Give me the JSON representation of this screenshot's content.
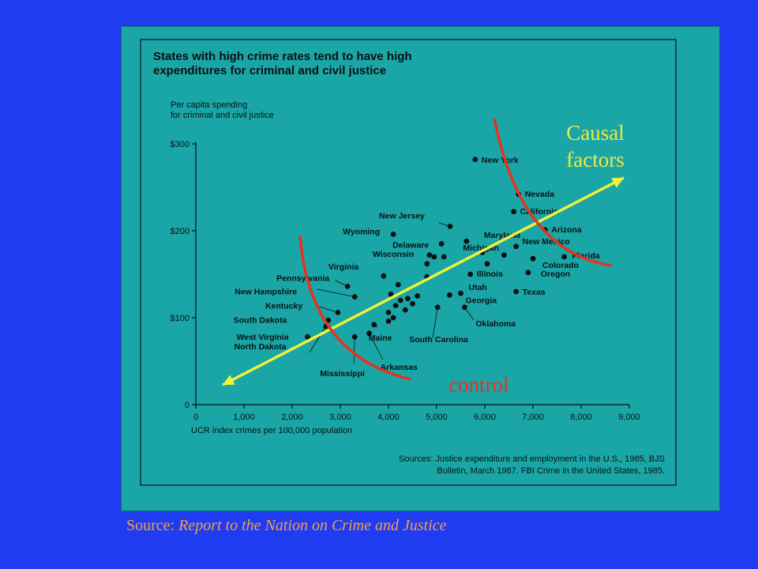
{
  "source": {
    "prefix": "Source: ",
    "title": "Report to the Nation on Crime and Justice"
  },
  "colors": {
    "background": "#1f3cf0",
    "panel": "#1aa6a6",
    "ink": "#0b1014",
    "arrow": "#f2f23a",
    "curve": "#e8321e",
    "annotation_causal": "#f2ea3a",
    "annotation_control": "#e8321e",
    "source": "#f5a046"
  },
  "chart_data": {
    "type": "scatter",
    "title_lines": [
      "States with high crime rates tend to have high",
      "expenditures for criminal and civil justice"
    ],
    "ylabel_lines": [
      "Per capita spending",
      "for criminal and civil justice"
    ],
    "xlabel": "UCR index crimes per 100,000 population",
    "xlim": [
      0,
      9000
    ],
    "ylim": [
      0,
      300
    ],
    "x_ticks": [
      0,
      1000,
      2000,
      3000,
      4000,
      5000,
      6000,
      7000,
      8000,
      9000
    ],
    "x_tick_labels": [
      "0",
      "1,000",
      "2,000",
      "3,000",
      "4,000",
      "5,000",
      "6,000",
      "7,000",
      "8,000",
      "9,000"
    ],
    "y_ticks": [
      0,
      100,
      200,
      300
    ],
    "y_tick_labels": [
      "0",
      "$100",
      "$200",
      "$300"
    ],
    "sources_lines": [
      "Sources: Justice expenditure and employment in the U.S., 1985, BJS",
      "Bulletin, March 1987. FBI Crime in the United States, 1985."
    ],
    "points": [
      {
        "label": "New York",
        "x": 5800,
        "y": 282
      },
      {
        "label": "Nevada",
        "x": 6700,
        "y": 242
      },
      {
        "label": "California",
        "x": 6600,
        "y": 222
      },
      {
        "label": "Arizona",
        "x": 7250,
        "y": 201
      },
      {
        "label": "New Jersey",
        "x": 5280,
        "y": 205
      },
      {
        "label": "Maryland",
        "x": 5620,
        "y": 188
      },
      {
        "label": "Wyoming",
        "x": 4100,
        "y": 196
      },
      {
        "label": "Delaware",
        "x": 5100,
        "y": 185
      },
      {
        "label": "Michigan",
        "x": 6400,
        "y": 172
      },
      {
        "label": "New Mexico",
        "x": 6650,
        "y": 182
      },
      {
        "label": "Florida",
        "x": 7650,
        "y": 170
      },
      {
        "label": "Colorado",
        "x": 7000,
        "y": 168
      },
      {
        "label": "Oregon",
        "x": 6900,
        "y": 152
      },
      {
        "label": "Wisconsin",
        "x": 4850,
        "y": 172
      },
      {
        "label": "Illinois",
        "x": 5700,
        "y": 150
      },
      {
        "label": "Virginia",
        "x": 3900,
        "y": 148
      },
      {
        "label": "Pennsylvania",
        "x": 3150,
        "y": 136
      },
      {
        "label": "Utah",
        "x": 5500,
        "y": 128
      },
      {
        "label": "Texas",
        "x": 6650,
        "y": 130
      },
      {
        "label": "New Hampshire",
        "x": 3300,
        "y": 124
      },
      {
        "label": "Georgia",
        "x": 5270,
        "y": 126
      },
      {
        "label": "Kentucky",
        "x": 2950,
        "y": 106
      },
      {
        "label": "Oklahoma",
        "x": 5580,
        "y": 112
      },
      {
        "label": "South Dakota",
        "x": 2750,
        "y": 97
      },
      {
        "label": "Maine",
        "x": 3700,
        "y": 92
      },
      {
        "label": "South Carolina",
        "x": 5020,
        "y": 112
      },
      {
        "label": "West Virginia",
        "x": 2320,
        "y": 78
      },
      {
        "label": "Mississippi",
        "x": 3300,
        "y": 78
      },
      {
        "label": "North Dakota",
        "x": 2700,
        "y": 90
      },
      {
        "label": "Arkansas",
        "x": 3600,
        "y": 82
      },
      {
        "label": "",
        "x": 4200,
        "y": 138
      },
      {
        "label": "",
        "x": 4800,
        "y": 147
      },
      {
        "label": "",
        "x": 4050,
        "y": 127
      },
      {
        "label": "",
        "x": 4250,
        "y": 120
      },
      {
        "label": "",
        "x": 4400,
        "y": 122
      },
      {
        "label": "",
        "x": 4600,
        "y": 125
      },
      {
        "label": "",
        "x": 4150,
        "y": 114
      },
      {
        "label": "",
        "x": 4500,
        "y": 116
      },
      {
        "label": "",
        "x": 4000,
        "y": 106
      },
      {
        "label": "",
        "x": 4350,
        "y": 109
      },
      {
        "label": "",
        "x": 4100,
        "y": 100
      },
      {
        "label": "",
        "x": 4000,
        "y": 96
      },
      {
        "label": "",
        "x": 5150,
        "y": 170
      },
      {
        "label": "",
        "x": 4800,
        "y": 162
      },
      {
        "label": "",
        "x": 5950,
        "y": 175
      },
      {
        "label": "",
        "x": 6050,
        "y": 162
      },
      {
        "label": "",
        "x": 4950,
        "y": 170
      }
    ],
    "annotations": {
      "causal_lines": [
        "Causal",
        "factors"
      ],
      "control": "control"
    }
  }
}
